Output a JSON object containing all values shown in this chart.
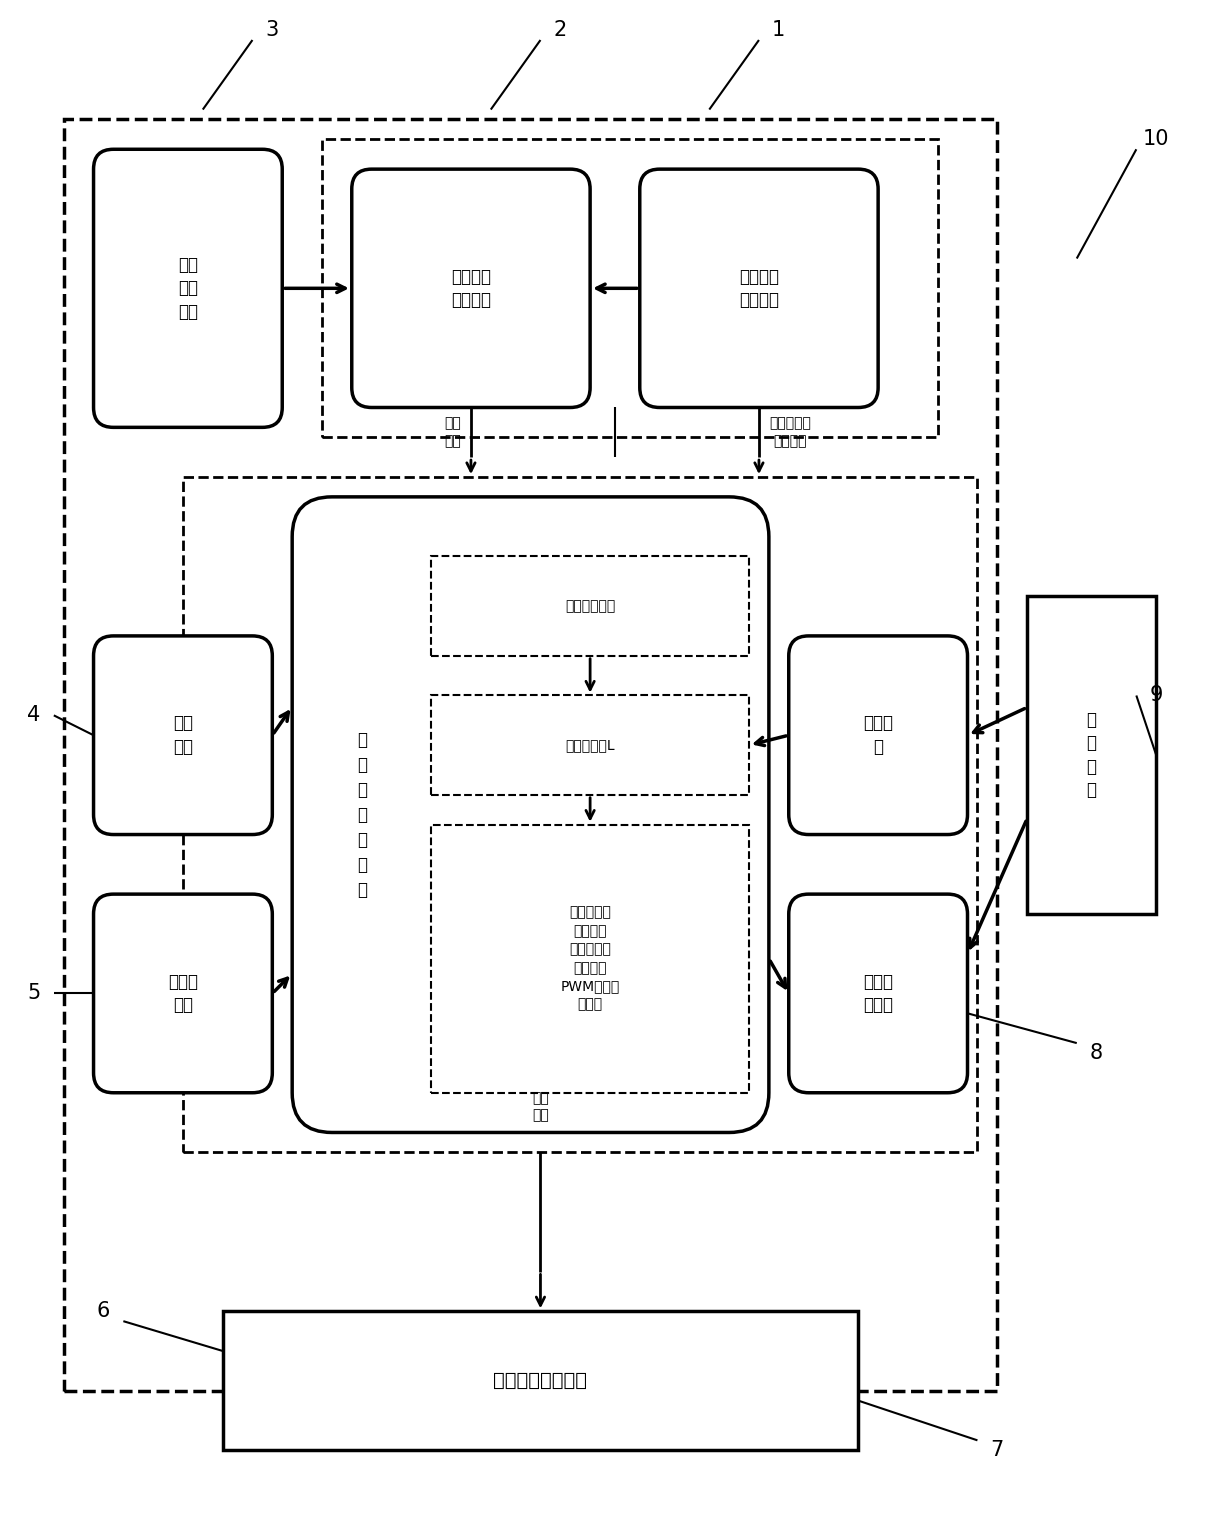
{
  "bg_color": "#ffffff",
  "line_color": "#000000",
  "fig_width": 12.14,
  "fig_height": 15.35,
  "labels": {
    "waibudianYuan": "外部\n电源\n模块",
    "wuxianShuju": "无线数据\n传输模块",
    "chaoshengboChuan": "超声波传\n感器模组",
    "zhongyang": "中\n央\n处\n理\n器\n模\n块",
    "energyDist": "能量值、距离",
    "leafIndex": "叶面积指数L",
    "pwmText": "根据叶面积\n指数、温\n度、速度信\n息得出的\nPWM电磁阀\n占空比",
    "dianYuanMokuai": "电源\n模块",
    "suduChuanGanQi": "速度传\n感器",
    "dingWeiMokuai": "定位模\n块",
    "guiJiXianShi": "轨迹显\n示模块",
    "kongZhiKaiguan": "控\n制\n开\n关",
    "bianLiangPenWu": "变量喷雾控制模块",
    "shuJuCaiJi": "数据\n采集",
    "huiBo": "回波信息和\n靶标距离",
    "xinXiShuChu": "信息\n输出",
    "num1": "1",
    "num2": "2",
    "num3": "3",
    "num4": "4",
    "num5": "5",
    "num6": "6",
    "num7": "7",
    "num8": "8",
    "num9": "9",
    "num10": "10"
  }
}
